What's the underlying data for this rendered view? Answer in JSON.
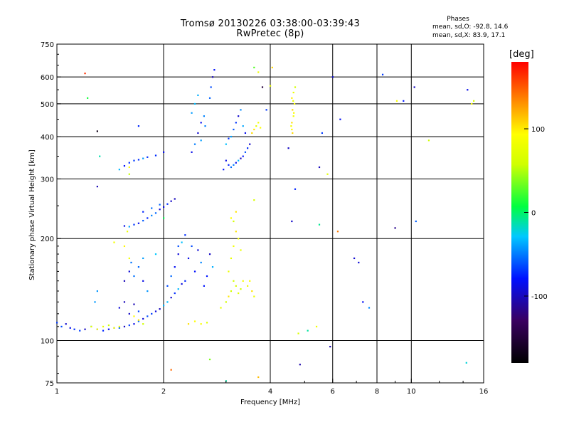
{
  "header": {
    "title": "Tromsø 20130226 03:38:00-03:39:43",
    "subtitle": "RwPretec (8p)"
  },
  "phases_box": {
    "title": "Phases",
    "o_label": "mean, sd,O: -92.8, 14.6",
    "x_label": "mean, sd,X: 83.9, 17.1"
  },
  "colorbar": {
    "unit": "[deg]",
    "range": [
      -180,
      180
    ],
    "ticks": [
      {
        "value": 100,
        "label": "100"
      },
      {
        "value": 0,
        "label": "0"
      },
      {
        "value": -100,
        "label": "-100"
      }
    ]
  },
  "chart_data": {
    "type": "scatter",
    "title": "Tromsø 20130226 03:38:00-03:39:43",
    "subtitle": "RwPretec (8p)",
    "xlabel": "Frequency [MHz]",
    "ylabel": "Stationary phase Virtual Height [km]",
    "x_scale": "log",
    "y_scale": "log",
    "xlim": [
      1,
      16
    ],
    "ylim": [
      75,
      750
    ],
    "x_ticks": [
      1,
      2,
      4,
      6,
      8,
      10,
      16
    ],
    "y_ticks": [
      75,
      100,
      200,
      300,
      400,
      500,
      600,
      750
    ],
    "grid": true,
    "color_encoding": "phase [deg]",
    "series": [
      {
        "mode": "O",
        "phase_mean": -92.8,
        "phase_sd": 14.6,
        "points": [
          [
            1.0,
            113
          ],
          [
            1.03,
            110
          ],
          [
            1.06,
            112
          ],
          [
            1.09,
            109
          ],
          [
            1.12,
            108
          ],
          [
            1.16,
            107
          ],
          [
            1.2,
            108
          ],
          [
            1.25,
            110
          ],
          [
            1.3,
            108
          ],
          [
            1.35,
            107
          ],
          [
            1.4,
            108
          ],
          [
            1.45,
            109
          ],
          [
            1.5,
            109
          ],
          [
            1.55,
            110
          ],
          [
            1.6,
            111
          ],
          [
            1.65,
            112
          ],
          [
            1.7,
            114
          ],
          [
            1.75,
            116
          ],
          [
            1.8,
            118
          ],
          [
            1.85,
            120
          ],
          [
            1.9,
            122
          ],
          [
            1.95,
            124
          ],
          [
            2.0,
            127
          ],
          [
            2.05,
            130
          ],
          [
            2.1,
            134
          ],
          [
            2.15,
            138
          ],
          [
            2.2,
            142
          ],
          [
            2.25,
            147
          ],
          [
            2.3,
            150
          ],
          [
            2.05,
            145
          ],
          [
            2.1,
            155
          ],
          [
            2.15,
            165
          ],
          [
            2.2,
            180
          ],
          [
            2.25,
            195
          ],
          [
            2.3,
            205
          ],
          [
            2.35,
            175
          ],
          [
            2.4,
            190
          ],
          [
            2.45,
            160
          ],
          [
            2.5,
            185
          ],
          [
            2.55,
            170
          ],
          [
            2.6,
            145
          ],
          [
            2.65,
            155
          ],
          [
            2.7,
            180
          ],
          [
            2.75,
            165
          ],
          [
            1.55,
            218
          ],
          [
            1.6,
            217
          ],
          [
            1.65,
            220
          ],
          [
            1.7,
            222
          ],
          [
            1.75,
            226
          ],
          [
            1.8,
            230
          ],
          [
            1.85,
            234
          ],
          [
            1.9,
            238
          ],
          [
            1.95,
            244
          ],
          [
            2.0,
            248
          ],
          [
            2.05,
            253
          ],
          [
            2.1,
            258
          ],
          [
            2.15,
            262
          ],
          [
            1.75,
            240
          ],
          [
            1.85,
            246
          ],
          [
            1.95,
            252
          ],
          [
            1.5,
            320
          ],
          [
            1.55,
            328
          ],
          [
            1.6,
            335
          ],
          [
            1.65,
            340
          ],
          [
            1.7,
            342
          ],
          [
            1.75,
            345
          ],
          [
            1.8,
            348
          ],
          [
            1.9,
            352
          ],
          [
            2.0,
            360
          ],
          [
            2.4,
            360
          ],
          [
            2.45,
            380
          ],
          [
            2.5,
            410
          ],
          [
            2.55,
            440
          ],
          [
            2.6,
            460
          ],
          [
            2.4,
            470
          ],
          [
            2.45,
            500
          ],
          [
            2.5,
            530
          ],
          [
            2.55,
            390
          ],
          [
            2.62,
            430
          ],
          [
            2.7,
            520
          ],
          [
            2.72,
            560
          ],
          [
            2.75,
            600
          ],
          [
            2.78,
            630
          ],
          [
            2.95,
            320
          ],
          [
            3.0,
            340
          ],
          [
            3.05,
            330
          ],
          [
            3.1,
            325
          ],
          [
            3.15,
            330
          ],
          [
            3.2,
            335
          ],
          [
            3.25,
            340
          ],
          [
            3.3,
            345
          ],
          [
            3.35,
            350
          ],
          [
            3.4,
            360
          ],
          [
            3.45,
            370
          ],
          [
            3.5,
            380
          ],
          [
            3.0,
            380
          ],
          [
            3.05,
            395
          ],
          [
            3.1,
            400
          ],
          [
            3.15,
            420
          ],
          [
            3.2,
            440
          ],
          [
            3.25,
            460
          ],
          [
            3.3,
            480
          ],
          [
            3.35,
            430
          ],
          [
            3.4,
            410
          ],
          [
            1.55,
            150
          ],
          [
            1.6,
            160
          ],
          [
            1.62,
            170
          ],
          [
            1.65,
            155
          ],
          [
            1.7,
            165
          ],
          [
            1.75,
            175
          ],
          [
            1.75,
            150
          ],
          [
            1.8,
            140
          ],
          [
            1.5,
            125
          ],
          [
            1.55,
            130
          ],
          [
            1.6,
            120
          ],
          [
            1.65,
            128
          ],
          [
            1.7,
            122
          ],
          [
            1.3,
            140
          ],
          [
            1.28,
            130
          ],
          [
            6.0,
            600
          ],
          [
            5.6,
            410
          ],
          [
            5.5,
            325
          ],
          [
            6.3,
            450
          ],
          [
            8.3,
            610
          ],
          [
            10.2,
            560
          ],
          [
            9.5,
            510
          ],
          [
            14.4,
            550
          ],
          [
            7.3,
            130
          ],
          [
            7.6,
            125
          ],
          [
            6.9,
            175
          ],
          [
            7.1,
            170
          ],
          [
            5.9,
            96
          ],
          [
            10.3,
            225
          ],
          [
            4.5,
            370
          ],
          [
            4.7,
            280
          ],
          [
            4.6,
            225
          ],
          [
            3.9,
            480
          ]
        ]
      },
      {
        "mode": "X",
        "phase_mean": 83.9,
        "phase_sd": 17.1,
        "points": [
          [
            1.35,
            110
          ],
          [
            1.4,
            111
          ],
          [
            1.45,
            109
          ],
          [
            1.5,
            110
          ],
          [
            1.3,
            108
          ],
          [
            1.25,
            110
          ],
          [
            2.35,
            112
          ],
          [
            2.45,
            114
          ],
          [
            2.55,
            112
          ],
          [
            2.65,
            113
          ],
          [
            2.9,
            125
          ],
          [
            3.0,
            130
          ],
          [
            3.05,
            135
          ],
          [
            3.1,
            140
          ],
          [
            3.15,
            150
          ],
          [
            3.2,
            145
          ],
          [
            3.25,
            138
          ],
          [
            3.3,
            142
          ],
          [
            3.35,
            150
          ],
          [
            3.05,
            160
          ],
          [
            3.1,
            175
          ],
          [
            3.15,
            190
          ],
          [
            3.2,
            210
          ],
          [
            3.25,
            200
          ],
          [
            3.3,
            185
          ],
          [
            3.15,
            225
          ],
          [
            3.2,
            240
          ],
          [
            3.1,
            230
          ],
          [
            3.45,
            145
          ],
          [
            3.55,
            140
          ],
          [
            3.5,
            150
          ],
          [
            3.6,
            135
          ],
          [
            3.55,
            410
          ],
          [
            3.6,
            420
          ],
          [
            3.65,
            430
          ],
          [
            3.7,
            440
          ],
          [
            3.75,
            425
          ],
          [
            4.6,
            420
          ],
          [
            4.6,
            440
          ],
          [
            4.65,
            460
          ],
          [
            4.62,
            480
          ],
          [
            4.68,
            500
          ],
          [
            4.6,
            520
          ],
          [
            4.65,
            540
          ],
          [
            4.7,
            560
          ],
          [
            4.62,
            410
          ],
          [
            4.58,
            430
          ],
          [
            4.66,
            470
          ],
          [
            4.64,
            510
          ],
          [
            1.6,
            325
          ],
          [
            1.55,
            190
          ],
          [
            1.6,
            175
          ],
          [
            1.58,
            210
          ],
          [
            1.7,
            115
          ],
          [
            1.65,
            118
          ],
          [
            1.75,
            112
          ],
          [
            4.0,
            565
          ],
          [
            3.7,
            620
          ],
          [
            4.05,
            640
          ],
          [
            14.8,
            500
          ],
          [
            15.0,
            510
          ],
          [
            9.1,
            510
          ],
          [
            3.6,
            260
          ],
          [
            4.8,
            105
          ],
          [
            5.4,
            110
          ],
          [
            5.8,
            310
          ],
          [
            11.2,
            390
          ]
        ]
      },
      {
        "mode": "outlier",
        "points": [
          [
            1.2,
            615
          ],
          [
            1.22,
            520
          ],
          [
            1.3,
            415
          ],
          [
            1.32,
            350
          ],
          [
            1.3,
            285
          ],
          [
            1.6,
            310
          ],
          [
            1.7,
            430
          ],
          [
            1.45,
            195
          ],
          [
            1.9,
            180
          ],
          [
            2.1,
            82
          ],
          [
            2.7,
            88
          ],
          [
            3.0,
            76
          ],
          [
            3.7,
            78
          ],
          [
            4.85,
            85
          ],
          [
            14.3,
            86
          ],
          [
            5.5,
            220
          ],
          [
            6.2,
            210
          ],
          [
            3.6,
            640
          ],
          [
            3.8,
            560
          ],
          [
            9.0,
            215
          ],
          [
            2.0,
            230
          ],
          [
            2.2,
            190
          ],
          [
            5.1,
            107
          ]
        ]
      }
    ]
  }
}
